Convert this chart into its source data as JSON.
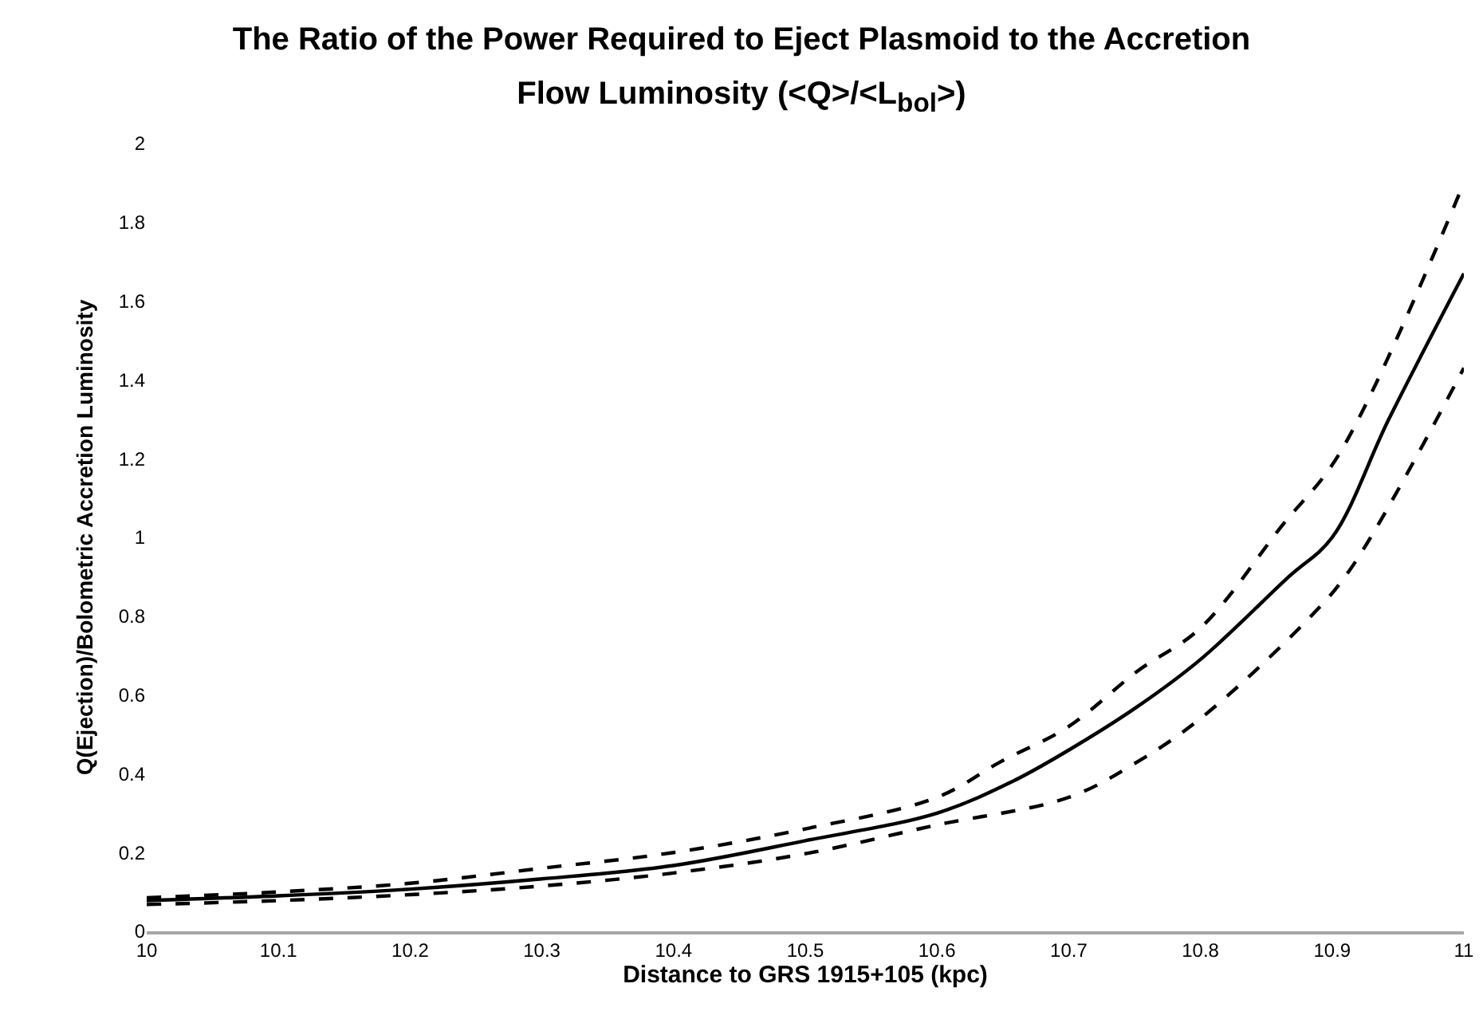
{
  "chart_data": {
    "type": "line",
    "title": "The Ratio of the Power Required to Eject Plasmoid to the Accretion Flow Luminosity (<Q>/<L$_{bol}$>)",
    "xlabel": "Distance to GRS 1915+105 (kpc)",
    "ylabel": "Q(Ejection)/Bolometric Accretion Luminosity",
    "series": [
      {
        "color": "#000000",
        "line_style": "solid",
        "x": [
          10,
          10.1,
          10.2,
          10.3,
          10.4,
          10.5,
          10.6,
          10.657,
          10.7,
          10.752,
          10.8,
          10.867,
          10.9,
          10.943,
          11
        ],
        "values": [
          0.078,
          0.09,
          0.107,
          0.133,
          0.167,
          0.23,
          0.3,
          0.38,
          0.46,
          0.57,
          0.69,
          0.9,
          1.0,
          1.3,
          1.67
        ]
      },
      {
        "color": "#000000",
        "line_style": "dashed",
        "x": [
          10,
          10.1,
          10.2,
          10.3,
          10.4,
          10.5,
          10.6,
          10.648,
          10.7,
          10.752,
          10.8,
          10.862,
          10.905,
          11
        ],
        "values": [
          0.085,
          0.1,
          0.122,
          0.16,
          0.2,
          0.26,
          0.34,
          0.43,
          0.52,
          0.66,
          0.77,
          1.03,
          1.21,
          1.9
        ]
      },
      {
        "color": "#000000",
        "line_style": "dashed",
        "x": [
          10,
          10.1,
          10.2,
          10.3,
          10.4,
          10.5,
          10.6,
          10.7,
          10.752,
          10.8,
          10.881,
          10.914,
          11
        ],
        "values": [
          0.068,
          0.078,
          0.093,
          0.115,
          0.148,
          0.197,
          0.27,
          0.34,
          0.43,
          0.54,
          0.79,
          0.92,
          1.43
        ]
      }
    ],
    "xlim": [
      10,
      11
    ],
    "xticks": [
      10,
      10.1,
      10.2,
      10.3,
      10.4,
      10.5,
      10.6,
      10.7,
      10.8,
      10.9,
      11
    ],
    "ylim": [
      0,
      2
    ],
    "yticks": [
      0,
      0.2,
      0.4,
      0.6,
      0.8,
      1,
      1.2,
      1.4,
      1.6,
      1.8,
      2
    ],
    "grid": false,
    "marker": "none"
  }
}
